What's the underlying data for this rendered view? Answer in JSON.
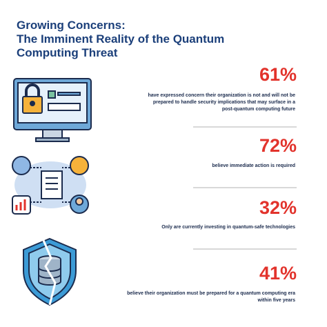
{
  "header": {
    "title": [
      "Growing Concerns:",
      "The Imminent Reality of the Quantum",
      "Computing Threat"
    ]
  },
  "stats": [
    {
      "value": "61%",
      "text": [
        "have expressed concern their organization is not and will not be",
        "prepared to handle security implications that may surface in a",
        "post-quantum computing future"
      ]
    },
    {
      "value": "72%",
      "text": [
        "believe immediate action is required"
      ]
    },
    {
      "value": "32%",
      "text": [
        "Only are currently investing in quantum-safe technologies"
      ]
    },
    {
      "value": "41%",
      "text": [
        "believe their organization must be prepared for a quantum computing era",
        "within five years"
      ]
    }
  ]
}
